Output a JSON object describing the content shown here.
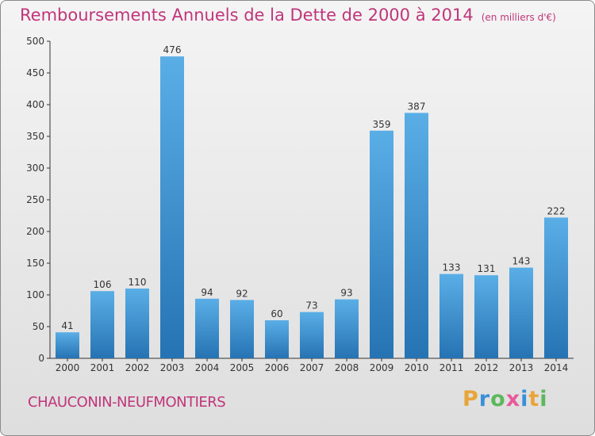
{
  "title": "Remboursements Annuels de la Dette de 2000 à 2014",
  "unit": "(en milliers d'€)",
  "place": "CHAUCONIN-NEUFMONTIERS",
  "logo": "Proxiti",
  "colors": {
    "accent": "#c0357a",
    "bar": "#3f97d9",
    "bar_light": "#5aaee6",
    "bar_dark": "#2673b3"
  },
  "chart_data": {
    "type": "bar",
    "categories": [
      "2000",
      "2001",
      "2002",
      "2003",
      "2004",
      "2005",
      "2006",
      "2007",
      "2008",
      "2009",
      "2010",
      "2011",
      "2012",
      "2013",
      "2014"
    ],
    "values": [
      41,
      106,
      110,
      476,
      94,
      92,
      60,
      73,
      93,
      359,
      387,
      133,
      131,
      143,
      222
    ],
    "title": "Remboursements Annuels de la Dette de 2000 à 2014",
    "ylim": [
      0,
      500
    ],
    "yticks": [
      0,
      50,
      100,
      150,
      200,
      250,
      300,
      350,
      400,
      450,
      500
    ],
    "grid": false
  }
}
